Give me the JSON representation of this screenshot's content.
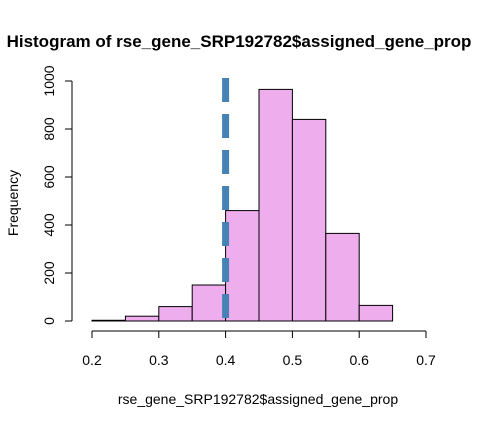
{
  "chart_data": {
    "type": "bar",
    "title": "Histogram of rse_gene_SRP192782$assigned_gene_prop",
    "xlabel": "rse_gene_SRP192782$assigned_gene_prop",
    "ylabel": "Frequency",
    "bin_edges": [
      0.2,
      0.25,
      0.3,
      0.35,
      0.4,
      0.45,
      0.5,
      0.55,
      0.6,
      0.65
    ],
    "values": [
      3,
      20,
      60,
      150,
      460,
      965,
      840,
      365,
      65
    ],
    "xlim": [
      0.2,
      0.7
    ],
    "ylim": [
      0,
      1000
    ],
    "x_ticks": [
      "0.2",
      "0.3",
      "0.4",
      "0.5",
      "0.6",
      "0.7"
    ],
    "y_ticks": [
      "0",
      "200",
      "400",
      "600",
      "800",
      "1000"
    ],
    "reference_line": {
      "x": 0.4,
      "style": "dashed"
    },
    "grid": false,
    "colors": {
      "bar_fill": "#EEAEEE",
      "bar_stroke": "#000000",
      "reference_line": "#4682B4"
    }
  }
}
